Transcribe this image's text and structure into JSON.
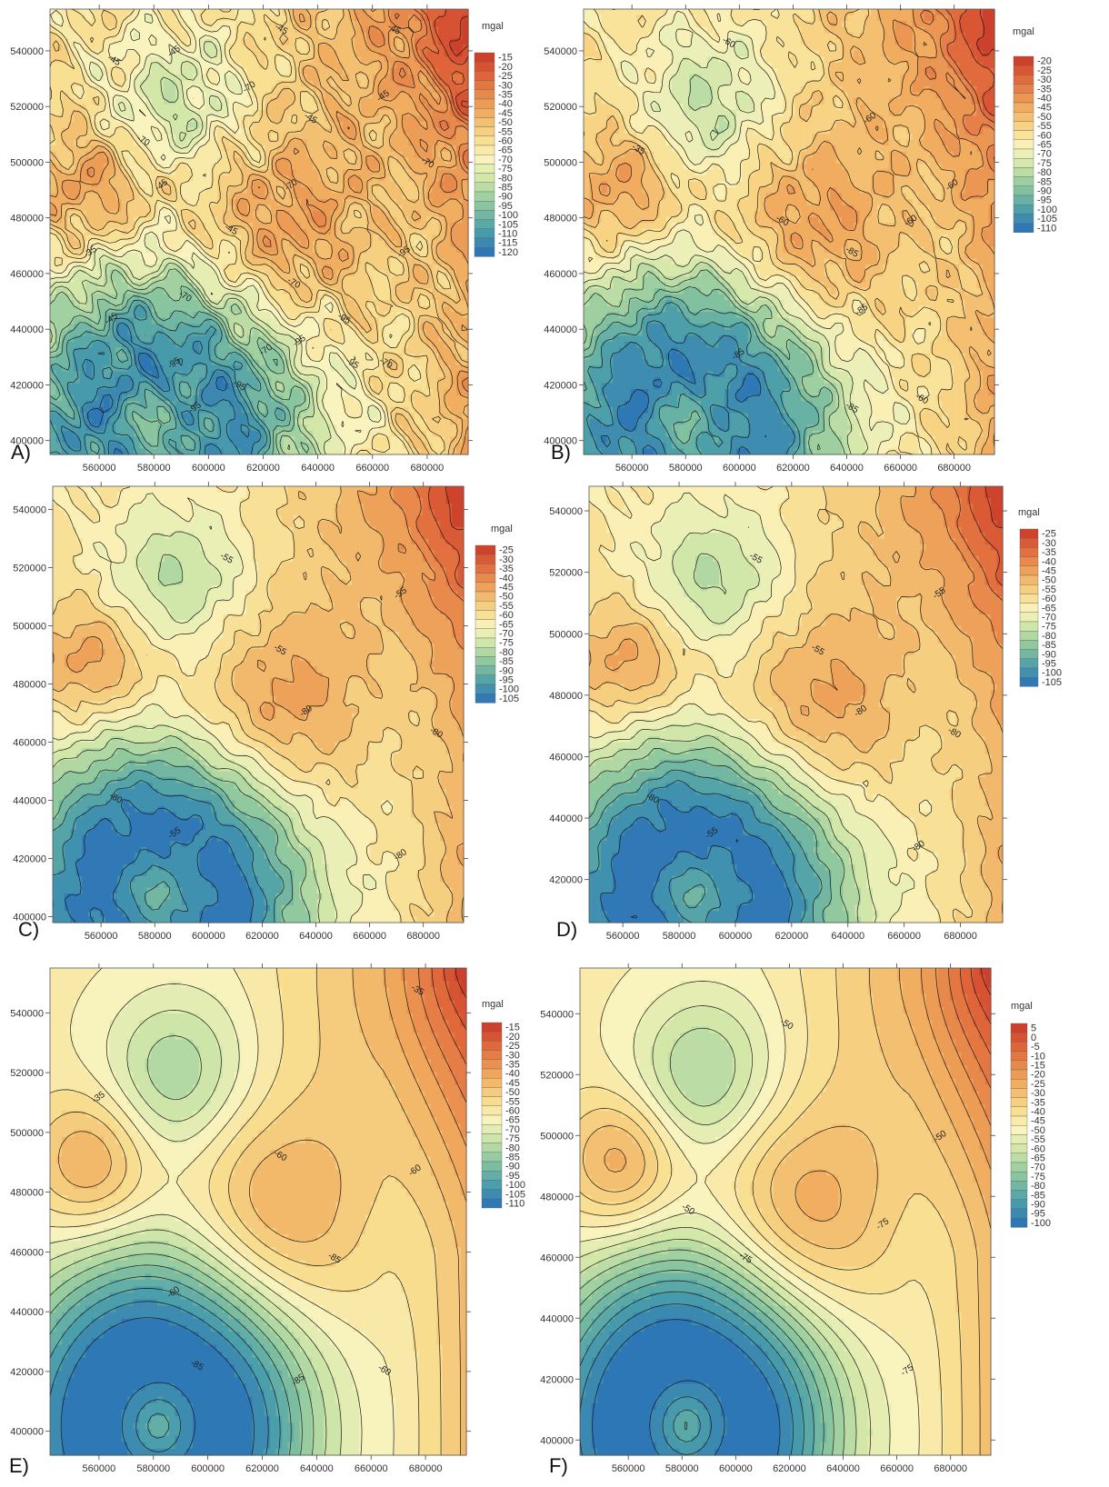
{
  "chart_data": [
    {
      "type": "heatmap",
      "panel_label": "A)",
      "unit": "mgal",
      "x_ticks": [
        "560000",
        "580000",
        "600000",
        "620000",
        "640000",
        "660000",
        "680000"
      ],
      "y_ticks": [
        "540000",
        "520000",
        "500000",
        "480000",
        "460000",
        "440000",
        "420000",
        "400000"
      ],
      "xlim": [
        542000,
        695000
      ],
      "ylim": [
        395000,
        555000
      ],
      "legend_levels": [
        "-15",
        "-20",
        "-25",
        "-30",
        "-35",
        "-40",
        "-45",
        "-50",
        "-55",
        "-60",
        "-65",
        "-70",
        "-75",
        "-80",
        "-85",
        "-90",
        "-95",
        "-100",
        "-105",
        "-110",
        "-115",
        "-120"
      ],
      "contour_labels": [
        "-45",
        "-45",
        "-45",
        "-45",
        "-70",
        "-70",
        "-45",
        "-45",
        "-45",
        "-70",
        "-45",
        "-35",
        "-70",
        "-95",
        "-70",
        "-45",
        "-95",
        "-70",
        "-70",
        "-95",
        "-95",
        "-95",
        "-95",
        "-95",
        "-70"
      ],
      "noise": 1.0
    },
    {
      "type": "heatmap",
      "panel_label": "B)",
      "unit": "mgal",
      "x_ticks": [
        "560000",
        "580000",
        "600000",
        "620000",
        "640000",
        "660000",
        "680000"
      ],
      "y_ticks": [
        "540000",
        "520000",
        "500000",
        "480000",
        "460000",
        "440000",
        "420000",
        "400000"
      ],
      "xlim": [
        542000,
        695000
      ],
      "ylim": [
        395000,
        555000
      ],
      "legend_levels": [
        "-20",
        "-25",
        "-30",
        "-35",
        "-40",
        "-45",
        "-50",
        "-55",
        "-60",
        "-65",
        "-70",
        "-75",
        "-80",
        "-85",
        "-90",
        "-95",
        "-100",
        "-105",
        "-110"
      ],
      "contour_labels": [
        "-60",
        "-60",
        "-35",
        "-60",
        "-60",
        "-85",
        "-85",
        "-85",
        "-85",
        "-60",
        "-60"
      ],
      "noise": 0.7
    },
    {
      "type": "heatmap",
      "panel_label": "C)",
      "unit": "mgal",
      "x_ticks": [
        "560000",
        "580000",
        "600000",
        "620000",
        "640000",
        "660000",
        "680000"
      ],
      "y_ticks": [
        "540000",
        "520000",
        "500000",
        "480000",
        "460000",
        "440000",
        "420000",
        "400000"
      ],
      "xlim": [
        542000,
        695000
      ],
      "ylim": [
        398000,
        548000
      ],
      "legend_levels": [
        "-25",
        "-30",
        "-35",
        "-40",
        "-45",
        "-50",
        "-55",
        "-60",
        "-65",
        "-70",
        "-75",
        "-80",
        "-85",
        "-90",
        "-95",
        "-100",
        "-105"
      ],
      "contour_labels": [
        "-55",
        "-55",
        "-55",
        "-80",
        "-80",
        "-55",
        "-80",
        "-80"
      ],
      "noise": 0.35
    },
    {
      "type": "heatmap",
      "panel_label": "D)",
      "unit": "mgal",
      "x_ticks": [
        "560000",
        "580000",
        "600000",
        "620000",
        "640000",
        "660000",
        "680000"
      ],
      "y_ticks": [
        "540000",
        "520000",
        "500000",
        "480000",
        "460000",
        "440000",
        "420000"
      ],
      "xlim": [
        548000,
        695000
      ],
      "ylim": [
        406000,
        548000
      ],
      "legend_levels": [
        "-25",
        "-30",
        "-35",
        "-40",
        "-45",
        "-50",
        "-55",
        "-60",
        "-65",
        "-70",
        "-75",
        "-80",
        "-85",
        "-90",
        "-95",
        "-100",
        "-105"
      ],
      "contour_labels": [
        "-55",
        "-55",
        "-55",
        "-80",
        "-80",
        "-55",
        "-80",
        "-80"
      ],
      "noise": 0.3
    },
    {
      "type": "heatmap",
      "panel_label": "E)",
      "unit": "mgal",
      "x_ticks": [
        "560000",
        "580000",
        "600000",
        "620000",
        "640000",
        "660000",
        "680000"
      ],
      "y_ticks": [
        "540000",
        "520000",
        "500000",
        "480000",
        "460000",
        "440000",
        "420000",
        "400000"
      ],
      "xlim": [
        542000,
        695000
      ],
      "ylim": [
        392000,
        555000
      ],
      "legend_levels": [
        "-15",
        "-20",
        "-25",
        "-30",
        "-35",
        "-40",
        "-45",
        "-50",
        "-55",
        "-60",
        "-65",
        "-70",
        "-75",
        "-80",
        "-85",
        "-90",
        "-95",
        "-100",
        "-105",
        "-110"
      ],
      "contour_labels": [
        "-35",
        "-35",
        "-60",
        "-60",
        "-85",
        "-60",
        "-85",
        "-85",
        "-60"
      ],
      "noise": 0.0
    },
    {
      "type": "heatmap",
      "panel_label": "F)",
      "unit": "mgal",
      "x_ticks": [
        "560000",
        "580000",
        "600000",
        "620000",
        "640000",
        "660000",
        "680000"
      ],
      "y_ticks": [
        "540000",
        "520000",
        "500000",
        "480000",
        "460000",
        "440000",
        "420000",
        "400000"
      ],
      "xlim": [
        542000,
        695000
      ],
      "ylim": [
        395000,
        555000
      ],
      "legend_levels": [
        "5",
        "0",
        "-5",
        "-10",
        "-15",
        "-20",
        "-25",
        "-30",
        "-35",
        "-40",
        "-45",
        "-50",
        "-55",
        "-60",
        "-65",
        "-70",
        "-75",
        "-80",
        "-85",
        "-90",
        "-95",
        "-100"
      ],
      "contour_labels": [
        "-50",
        "-50",
        "-50",
        "-75",
        "-75",
        "-75"
      ],
      "noise": 0.0
    }
  ]
}
